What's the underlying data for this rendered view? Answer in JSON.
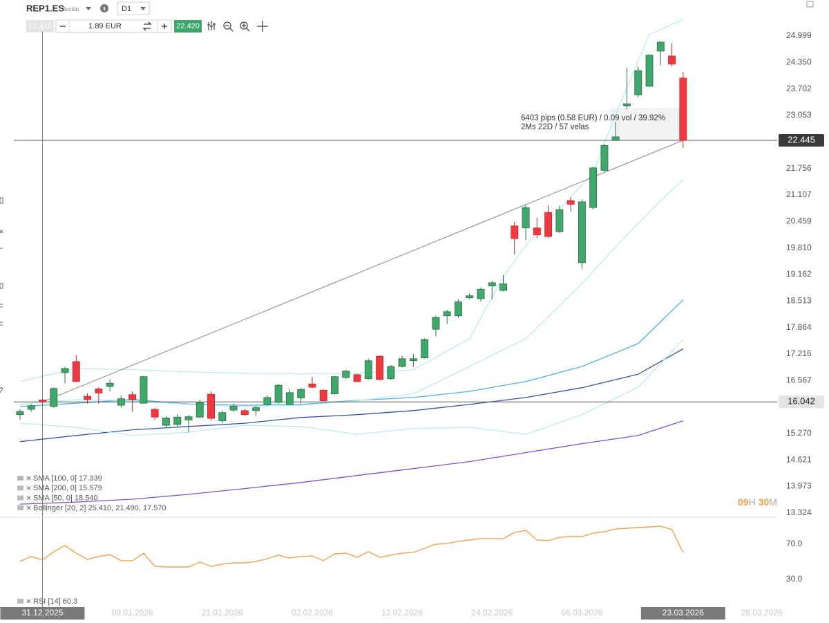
{
  "toolbar": {
    "symbol": "REP1.ES",
    "kind": "Acción",
    "timeframe": "D1",
    "sell": "22.410",
    "quantity": "1.89 EUR",
    "buy": "22.420"
  },
  "countdown": {
    "hours": "09",
    "h": "H",
    "minutes": "30",
    "m": "M"
  },
  "chart_data": [
    {
      "type": "candlestick",
      "up_color": "#3fa86a",
      "down_color": "#ec3a40",
      "open": [
        15.73,
        15.86,
        16.09,
        15.93,
        16.76,
        17.03,
        16.18,
        16.36,
        16.42,
        15.96,
        16.22,
        16.01,
        15.86,
        15.47,
        15.49,
        15.6,
        15.67,
        16.23,
        15.58,
        15.84,
        15.83,
        15.83,
        15.98,
        16.03,
        15.98,
        16.14,
        16.48,
        16.33,
        16.24,
        16.64,
        16.71,
        16.61,
        17.16,
        16.61,
        16.91,
        17.05,
        17.12,
        17.82,
        18.15,
        18.15,
        18.59,
        18.57,
        18.88,
        18.77,
        20.35,
        20.3,
        20.3,
        20.68,
        20.21,
        20.97,
        19.45,
        20.8,
        21.71,
        22.45,
        23.29,
        23.56,
        23.77,
        24.63,
        24.51,
        23.97
      ],
      "high": [
        15.86,
        15.99,
        16.12,
        16.4,
        16.9,
        17.19,
        16.25,
        16.4,
        16.6,
        16.2,
        16.3,
        16.68,
        15.9,
        15.7,
        15.75,
        15.72,
        16.1,
        16.3,
        15.83,
        16.0,
        15.87,
        15.95,
        16.2,
        16.48,
        16.35,
        16.38,
        16.65,
        16.35,
        16.68,
        16.82,
        16.73,
        17.1,
        17.18,
        16.95,
        17.17,
        17.22,
        17.6,
        18.15,
        18.3,
        18.55,
        18.7,
        18.85,
        19.0,
        19.15,
        20.45,
        20.85,
        20.55,
        20.85,
        20.85,
        21.05,
        21.0,
        21.8,
        22.35,
        22.9,
        24.22,
        24.25,
        24.55,
        24.87,
        24.82,
        24.12
      ],
      "low": [
        15.61,
        15.8,
        16.0,
        15.9,
        16.5,
        16.54,
        16.0,
        16.0,
        16.3,
        15.9,
        15.8,
        16.0,
        15.6,
        15.4,
        15.42,
        15.3,
        15.65,
        15.58,
        15.52,
        15.8,
        15.7,
        15.7,
        15.95,
        16.0,
        15.96,
        16.0,
        16.38,
        16.05,
        16.22,
        16.6,
        16.52,
        16.58,
        16.57,
        16.58,
        16.88,
        16.9,
        17.1,
        17.65,
        17.95,
        18.1,
        18.55,
        18.5,
        18.55,
        18.75,
        19.65,
        20.0,
        20.05,
        20.05,
        20.18,
        20.7,
        19.3,
        20.75,
        21.68,
        22.43,
        23.2,
        23.5,
        23.75,
        24.28,
        24.25,
        22.26
      ],
      "close": [
        15.81,
        15.95,
        16.042,
        16.37,
        16.86,
        16.54,
        16.1,
        16.26,
        16.5,
        16.12,
        16.1,
        16.66,
        15.67,
        15.65,
        15.67,
        15.68,
        16.03,
        15.64,
        15.78,
        15.94,
        15.73,
        15.9,
        16.15,
        16.45,
        16.27,
        16.35,
        16.4,
        16.07,
        16.66,
        16.8,
        16.54,
        17.05,
        16.59,
        16.91,
        17.1,
        17.1,
        17.57,
        18.11,
        18.25,
        18.49,
        18.64,
        18.8,
        18.96,
        18.93,
        20.04,
        20.8,
        20.13,
        20.09,
        20.75,
        20.88,
        20.94,
        21.77,
        22.32,
        22.53,
        23.34,
        24.15,
        24.53,
        24.85,
        24.31,
        22.445
      ],
      "xlim": [
        -0.55,
        67.37
      ],
      "xticks": [
        {
          "value": 2,
          "label": "31.12.2025"
        },
        {
          "value": 10,
          "label": "09.01.2026"
        },
        {
          "value": 18,
          "label": "21.01.2026"
        },
        {
          "value": 26,
          "label": "02.02.2026"
        },
        {
          "value": 34,
          "label": "12.02.2026"
        },
        {
          "value": 42,
          "label": "24.02.2026"
        },
        {
          "value": 50,
          "label": "06.03.2026"
        },
        {
          "value": 59,
          "label": "23.03.2026"
        },
        {
          "value": 66,
          "label": "28.03.2026"
        }
      ],
      "highlighted_xticks": [
        0,
        7
      ],
      "ylim": [
        13.22,
        25.88
      ],
      "yticks": [
        24.999,
        {
          "value": 24.35,
          "label": "24.350"
        },
        23.702,
        23.053,
        21.756,
        21.107,
        20.459,
        {
          "value": 19.81,
          "label": "19.810"
        },
        19.162,
        18.513,
        17.864,
        17.216,
        16.567,
        {
          "value": 15.27,
          "label": "15.270"
        },
        14.621,
        13.973,
        13.324
      ],
      "price_lines": [
        22.445,
        16.042
      ],
      "annotations": [
        "6403 pips (0.58 EUR) / 0.09 vol / 39.92%",
        "2Ms 22D / 57 velas"
      ],
      "series": [
        {
          "name": "SMA [100, 0] 17.339",
          "color": "#2f55a6",
          "x": [
            0,
            5,
            10,
            15,
            20,
            25,
            30,
            35,
            40,
            45,
            50,
            55,
            59
          ],
          "values": [
            15.07,
            15.22,
            15.36,
            15.44,
            15.52,
            15.66,
            15.73,
            15.83,
            15.98,
            16.15,
            16.39,
            16.72,
            17.339
          ]
        },
        {
          "name": "SMA [200, 0] 15.579",
          "color": "#7a52cf",
          "x": [
            0,
            5,
            10,
            15,
            20,
            25,
            30,
            35,
            40,
            45,
            50,
            55,
            59
          ],
          "values": [
            13.54,
            13.59,
            13.66,
            13.78,
            13.92,
            14.07,
            14.24,
            14.41,
            14.58,
            14.8,
            15.02,
            15.22,
            15.579
          ]
        },
        {
          "name": "SMA [50, 0] 18.540",
          "color": "#4cb0ea",
          "x": [
            0,
            5,
            10,
            15,
            20,
            25,
            30,
            35,
            40,
            45,
            50,
            55,
            59
          ],
          "values": [
            15.93,
            16.01,
            16.1,
            15.99,
            15.96,
            15.98,
            16.08,
            16.15,
            16.3,
            16.54,
            16.91,
            17.47,
            18.54
          ]
        },
        {
          "name": "Bollinger [20, 2] 25.410, 21.490, 17.570",
          "color": "#b5eaf4",
          "bands": [
            {
              "x": [
                0,
                5,
                10,
                15,
                20,
                25,
                30,
                35,
                40,
                43,
                45,
                51,
                53,
                56,
                59
              ],
              "values": [
                16.54,
                16.86,
                16.83,
                16.78,
                16.74,
                16.73,
                16.74,
                16.83,
                17.59,
                19.11,
                19.87,
                21.65,
                23.09,
                25.03,
                25.41
              ]
            },
            {
              "x": [
                0,
                5,
                10,
                15,
                20,
                25,
                30,
                35,
                40,
                45,
                50,
                54,
                57,
                59
              ],
              "values": [
                15.98,
                16.1,
                16.07,
                15.98,
                15.93,
                15.96,
                16.07,
                16.24,
                16.91,
                17.59,
                18.94,
                20.13,
                20.97,
                21.49
              ]
            },
            {
              "x": [
                0,
                5,
                10,
                15,
                20,
                25,
                30,
                35,
                40,
                45,
                50,
                55,
                59
              ],
              "values": [
                15.52,
                15.42,
                15.22,
                15.3,
                15.47,
                15.44,
                15.25,
                15.39,
                15.42,
                15.25,
                15.73,
                16.4,
                17.57
              ]
            }
          ]
        }
      ]
    },
    {
      "type": "line",
      "xlim": [
        -0.55,
        67.37
      ],
      "ylim": [
        -3,
        99
      ],
      "yticks": [
        {
          "value": 70,
          "label": "70.0"
        },
        {
          "value": 30,
          "label": "30.0"
        }
      ],
      "series": [
        {
          "name": "RSI [14] 60.3",
          "color": "#f4a24c",
          "values": [
            50.4,
            55.9,
            52.0,
            61.4,
            68.4,
            59.8,
            52.7,
            55.9,
            58.2,
            51.2,
            51.2,
            59.8,
            44.9,
            44.1,
            44.1,
            44.1,
            49.6,
            44.9,
            47.3,
            48.8,
            48.8,
            50.4,
            53.5,
            57.5,
            54.3,
            55.9,
            56.7,
            51.2,
            59.0,
            59.8,
            55.1,
            61.4,
            55.1,
            57.5,
            59.8,
            60.6,
            65.3,
            70.0,
            70.8,
            73.1,
            74.7,
            76.3,
            76.3,
            76.3,
            83.3,
            85.7,
            74.7,
            73.9,
            77.8,
            78.6,
            78.6,
            82.5,
            84.1,
            87.3,
            88.0,
            88.8,
            89.6,
            90.4,
            86.5,
            60.3
          ]
        }
      ]
    }
  ]
}
